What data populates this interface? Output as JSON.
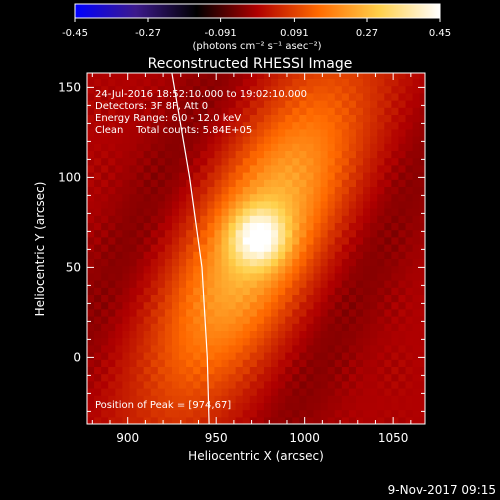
{
  "chart_data": {
    "type": "heatmap",
    "title": "Reconstructed RHESSI Image",
    "xlabel": "Heliocentric X (arcsec)",
    "ylabel": "Heliocentric Y (arcsec)",
    "xlim": [
      877,
      1068
    ],
    "ylim": [
      -37,
      158
    ],
    "x_ticks": [
      900,
      950,
      1000,
      1050
    ],
    "y_ticks": [
      0,
      50,
      100,
      150
    ],
    "colorbar": {
      "label": "(photons cm⁻² s⁻¹ asec⁻²)",
      "ticks": [
        "-0.45",
        "-0.27",
        "-0.091",
        "0.091",
        "0.27",
        "0.45"
      ],
      "range": [
        -0.45,
        0.45
      ],
      "colormap": "RHESSI hot"
    },
    "annotations": [
      "24-Jul-2016 18:52:10.000 to 19:02:10.000",
      "Detectors: 3F 8F, Att 0",
      "Energy Range: 6.0 - 12.0 keV",
      "Clean    Total counts: 5.84E+05"
    ],
    "peak_label": "Position of Peak = [974,67]",
    "peak": [
      974,
      67
    ],
    "limb_curve_x_at_y": [
      [
        -37,
        946
      ],
      [
        0,
        945
      ],
      [
        50,
        942
      ],
      [
        100,
        935
      ],
      [
        158,
        925
      ]
    ],
    "source": {
      "peak_value": 0.45,
      "orientation": "elongated ridge tilted, running lower-left to upper-right"
    }
  },
  "footer": {
    "date": "9-Nov-2017 09:15"
  },
  "colors": {
    "background": "#000000",
    "text": "#ffffff",
    "colormap_stops": [
      "#0000ff",
      "#3c1a8c",
      "#000000",
      "#b00000",
      "#ff6a00",
      "#ffd04a",
      "#ffffff"
    ]
  }
}
